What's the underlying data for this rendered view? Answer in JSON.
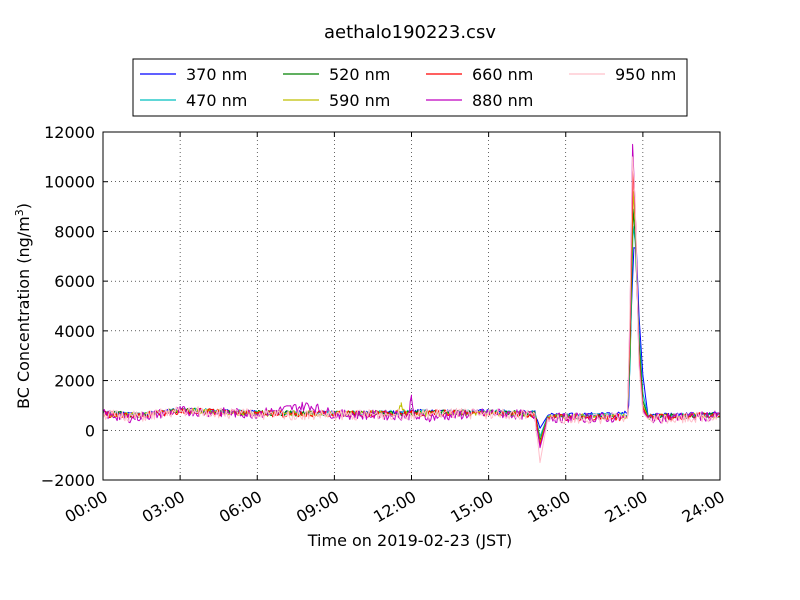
{
  "chart_data": {
    "type": "line",
    "title": "aethalo190223.csv",
    "xlabel": "Time on 2019-02-23 (JST)",
    "ylabel_main": "BC Concentration (ng/m",
    "ylabel_sup": "3",
    "ylabel_close": ")",
    "xlim_hours": [
      0,
      24
    ],
    "ylim": [
      -2000,
      12000
    ],
    "x_ticks": [
      {
        "hour": 0,
        "label": "00:00"
      },
      {
        "hour": 3,
        "label": "03:00"
      },
      {
        "hour": 6,
        "label": "06:00"
      },
      {
        "hour": 9,
        "label": "09:00"
      },
      {
        "hour": 12,
        "label": "12:00"
      },
      {
        "hour": 15,
        "label": "15:00"
      },
      {
        "hour": 18,
        "label": "18:00"
      },
      {
        "hour": 21,
        "label": "21:00"
      },
      {
        "hour": 24,
        "label": "24:00"
      }
    ],
    "y_ticks": [
      {
        "value": 12000,
        "label": "12000"
      },
      {
        "value": 10000,
        "label": "10000"
      },
      {
        "value": 8000,
        "label": "8000"
      },
      {
        "value": 6000,
        "label": "6000"
      },
      {
        "value": 4000,
        "label": "4000"
      },
      {
        "value": 2000,
        "label": "2000"
      },
      {
        "value": 0,
        "label": "0"
      },
      {
        "value": -2000,
        "label": "−2000"
      }
    ],
    "grid": true,
    "legend_placement": "top-center",
    "series": [
      {
        "name": "370 nm",
        "color": "#0000ff",
        "seed": 3,
        "noise": 80,
        "points": [
          [
            0,
            700
          ],
          [
            1.5,
            650
          ],
          [
            3,
            820
          ],
          [
            6,
            720
          ],
          [
            9,
            700
          ],
          [
            11.5,
            720
          ],
          [
            12,
            780
          ],
          [
            15,
            760
          ],
          [
            16.8,
            720
          ],
          [
            17,
            80
          ],
          [
            17.3,
            600
          ],
          [
            18,
            620
          ],
          [
            19.5,
            650
          ],
          [
            20.4,
            700
          ],
          [
            20.45,
            1000
          ],
          [
            20.55,
            4800
          ],
          [
            20.65,
            7350
          ],
          [
            20.75,
            7300
          ],
          [
            20.85,
            4600
          ],
          [
            21,
            2200
          ],
          [
            21.2,
            600
          ],
          [
            22,
            620
          ],
          [
            24,
            650
          ]
        ]
      },
      {
        "name": "470 nm",
        "color": "#00bfbf",
        "seed": 11,
        "noise": 100,
        "points": [
          [
            0,
            700
          ],
          [
            1.5,
            640
          ],
          [
            3,
            820
          ],
          [
            6,
            700
          ],
          [
            9,
            680
          ],
          [
            12,
            720
          ],
          [
            15,
            740
          ],
          [
            16.8,
            690
          ],
          [
            17,
            -250
          ],
          [
            17.3,
            580
          ],
          [
            18,
            580
          ],
          [
            20.4,
            600
          ],
          [
            20.5,
            2500
          ],
          [
            20.62,
            8200
          ],
          [
            20.7,
            7600
          ],
          [
            20.85,
            4000
          ],
          [
            21,
            1500
          ],
          [
            21.2,
            560
          ],
          [
            24,
            620
          ]
        ]
      },
      {
        "name": "520 nm",
        "color": "#008000",
        "seed": 19,
        "noise": 110,
        "points": [
          [
            0,
            680
          ],
          [
            1.5,
            620
          ],
          [
            3,
            800
          ],
          [
            6,
            690
          ],
          [
            9,
            670
          ],
          [
            12,
            700
          ],
          [
            15,
            720
          ],
          [
            16.8,
            660
          ],
          [
            17,
            -400
          ],
          [
            17.3,
            560
          ],
          [
            18,
            560
          ],
          [
            20.4,
            560
          ],
          [
            20.5,
            3000
          ],
          [
            20.62,
            8900
          ],
          [
            20.7,
            7800
          ],
          [
            20.85,
            3600
          ],
          [
            21,
            1200
          ],
          [
            21.2,
            540
          ],
          [
            24,
            610
          ]
        ]
      },
      {
        "name": "590 nm",
        "color": "#bfbf00",
        "seed": 27,
        "noise": 120,
        "points": [
          [
            0,
            660
          ],
          [
            1.5,
            600
          ],
          [
            3,
            790
          ],
          [
            6,
            680
          ],
          [
            9,
            660
          ],
          [
            11.4,
            700
          ],
          [
            11.6,
            1000
          ],
          [
            11.8,
            650
          ],
          [
            15,
            700
          ],
          [
            16.8,
            640
          ],
          [
            17,
            -500
          ],
          [
            17.3,
            540
          ],
          [
            18,
            540
          ],
          [
            20.4,
            540
          ],
          [
            20.5,
            3500
          ],
          [
            20.62,
            9600
          ],
          [
            20.72,
            8000
          ],
          [
            20.85,
            3200
          ],
          [
            21,
            1000
          ],
          [
            21.2,
            520
          ],
          [
            24,
            600
          ]
        ]
      },
      {
        "name": "660 nm",
        "color": "#ff0000",
        "seed": 35,
        "noise": 140,
        "points": [
          [
            0,
            650
          ],
          [
            1.5,
            590
          ],
          [
            3,
            780
          ],
          [
            6,
            670
          ],
          [
            9,
            650
          ],
          [
            12,
            680
          ],
          [
            15,
            700
          ],
          [
            16.8,
            620
          ],
          [
            17,
            -600
          ],
          [
            17.3,
            520
          ],
          [
            18,
            520
          ],
          [
            20.4,
            520
          ],
          [
            20.5,
            4000
          ],
          [
            20.62,
            10600
          ],
          [
            20.72,
            8300
          ],
          [
            20.85,
            3000
          ],
          [
            21,
            900
          ],
          [
            21.2,
            500
          ],
          [
            24,
            600
          ]
        ]
      },
      {
        "name": "880 nm",
        "color": "#bf00bf",
        "seed": 43,
        "noise": 200,
        "points": [
          [
            0,
            650
          ],
          [
            1,
            500
          ],
          [
            1.5,
            560
          ],
          [
            3,
            780
          ],
          [
            6,
            660
          ],
          [
            8,
            1000
          ],
          [
            9,
            640
          ],
          [
            11.9,
            600
          ],
          [
            12,
            1500
          ],
          [
            12.1,
            500
          ],
          [
            15,
            700
          ],
          [
            16.8,
            600
          ],
          [
            17,
            -700
          ],
          [
            17.3,
            500
          ],
          [
            18,
            500
          ],
          [
            20.4,
            500
          ],
          [
            20.5,
            4500
          ],
          [
            20.6,
            11500
          ],
          [
            20.7,
            9000
          ],
          [
            20.85,
            2800
          ],
          [
            21,
            800
          ],
          [
            21.2,
            480
          ],
          [
            24,
            580
          ]
        ]
      },
      {
        "name": "950 nm",
        "color": "#ffc0cb",
        "seed": 51,
        "noise": 220,
        "points": [
          [
            0,
            630
          ],
          [
            1.5,
            540
          ],
          [
            3,
            760
          ],
          [
            6,
            640
          ],
          [
            9,
            620
          ],
          [
            12,
            650
          ],
          [
            15,
            680
          ],
          [
            16.8,
            580
          ],
          [
            17,
            -1300
          ],
          [
            17.3,
            480
          ],
          [
            18,
            480
          ],
          [
            20.4,
            480
          ],
          [
            20.5,
            5000
          ],
          [
            20.6,
            11000
          ],
          [
            20.7,
            9200
          ],
          [
            20.85,
            2600
          ],
          [
            21,
            700
          ],
          [
            21.2,
            460
          ],
          [
            24,
            560
          ]
        ]
      }
    ]
  }
}
